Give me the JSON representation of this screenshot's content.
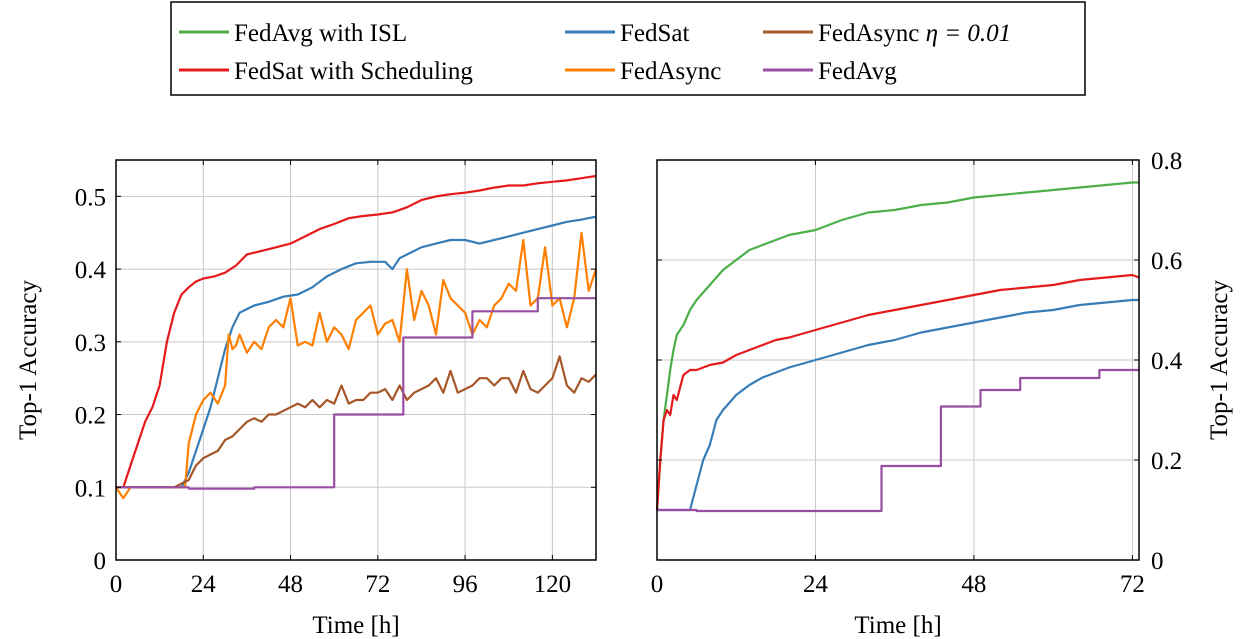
{
  "legend": {
    "entries": [
      {
        "label": "FedAvg with ISL",
        "color": "#4daf4a"
      },
      {
        "label": "FedSat",
        "color": "#377eb8"
      },
      {
        "label": "FedAsync ",
        "math": "η = 0.01",
        "color": "#a65628"
      },
      {
        "label": "FedSat with Scheduling",
        "color": "#e41a1c"
      },
      {
        "label": "FedAsync",
        "color": "#ff7f00"
      },
      {
        "label": "FedAvg",
        "color": "#984ea3"
      }
    ]
  },
  "chart_data": [
    {
      "type": "line",
      "xlabel": "Time [h]",
      "ylabel": "Top-1 Accuracy",
      "xlim": [
        0,
        132
      ],
      "ylim": [
        0,
        0.55
      ],
      "xticks": [
        0,
        24,
        48,
        72,
        96,
        120
      ],
      "yticks": [
        0,
        0.1,
        0.2,
        0.3,
        0.4,
        0.5
      ],
      "xtick_labels": [
        "0",
        "24",
        "48",
        "72",
        "96",
        "120"
      ],
      "ytick_labels": [
        "0",
        "0.1",
        "0.2",
        "0.3",
        "0.4",
        "0.5"
      ],
      "ytick_side": "left",
      "grid": true,
      "series": [
        {
          "name": "FedSat with Scheduling",
          "color": "#e41a1c",
          "step": false,
          "x": [
            0,
            2,
            4,
            6,
            8,
            10,
            12,
            14,
            16,
            18,
            20,
            22,
            24,
            27,
            30,
            33,
            36,
            40,
            44,
            48,
            52,
            56,
            60,
            64,
            68,
            72,
            76,
            80,
            84,
            88,
            92,
            96,
            100,
            104,
            108,
            112,
            116,
            120,
            124,
            128,
            132
          ],
          "y": [
            0.1,
            0.1,
            0.13,
            0.16,
            0.19,
            0.21,
            0.24,
            0.3,
            0.34,
            0.365,
            0.375,
            0.383,
            0.387,
            0.39,
            0.395,
            0.405,
            0.42,
            0.425,
            0.43,
            0.435,
            0.445,
            0.455,
            0.462,
            0.47,
            0.473,
            0.475,
            0.478,
            0.485,
            0.495,
            0.5,
            0.503,
            0.505,
            0.508,
            0.512,
            0.515,
            0.515,
            0.518,
            0.52,
            0.522,
            0.525,
            0.528
          ]
        },
        {
          "name": "FedSat",
          "color": "#377eb8",
          "step": false,
          "x": [
            0,
            4,
            8,
            12,
            16,
            18,
            20,
            22,
            24,
            26,
            28,
            30,
            32,
            34,
            36,
            38,
            42,
            46,
            50,
            54,
            58,
            62,
            66,
            70,
            74,
            76,
            78,
            80,
            84,
            88,
            92,
            96,
            100,
            104,
            108,
            112,
            116,
            120,
            124,
            128,
            132
          ],
          "y": [
            0.1,
            0.1,
            0.1,
            0.1,
            0.1,
            0.1,
            0.12,
            0.15,
            0.18,
            0.21,
            0.25,
            0.29,
            0.32,
            0.34,
            0.345,
            0.35,
            0.355,
            0.362,
            0.365,
            0.375,
            0.39,
            0.4,
            0.408,
            0.41,
            0.41,
            0.4,
            0.415,
            0.42,
            0.43,
            0.435,
            0.44,
            0.44,
            0.435,
            0.44,
            0.445,
            0.45,
            0.455,
            0.46,
            0.465,
            0.468,
            0.472
          ]
        },
        {
          "name": "FedAsync",
          "color": "#ff7f00",
          "step": false,
          "x": [
            0,
            2,
            4,
            6,
            8,
            12,
            16,
            19,
            20,
            22,
            24,
            26,
            28,
            30,
            31,
            32,
            33,
            34,
            36,
            38,
            40,
            42,
            44,
            46,
            48,
            50,
            52,
            54,
            56,
            58,
            60,
            62,
            64,
            66,
            68,
            70,
            72,
            74,
            76,
            78,
            80,
            82,
            84,
            86,
            88,
            90,
            92,
            94,
            96,
            98,
            100,
            102,
            104,
            106,
            108,
            110,
            112,
            114,
            116,
            118,
            120,
            122,
            124,
            126,
            128,
            130,
            132
          ],
          "y": [
            0.1,
            0.085,
            0.1,
            0.1,
            0.1,
            0.1,
            0.1,
            0.1,
            0.16,
            0.2,
            0.22,
            0.23,
            0.215,
            0.24,
            0.31,
            0.29,
            0.295,
            0.31,
            0.285,
            0.3,
            0.29,
            0.32,
            0.33,
            0.32,
            0.36,
            0.295,
            0.3,
            0.295,
            0.34,
            0.3,
            0.32,
            0.31,
            0.29,
            0.33,
            0.34,
            0.35,
            0.31,
            0.325,
            0.33,
            0.3,
            0.4,
            0.33,
            0.37,
            0.35,
            0.31,
            0.385,
            0.36,
            0.35,
            0.34,
            0.31,
            0.33,
            0.32,
            0.35,
            0.36,
            0.38,
            0.37,
            0.44,
            0.35,
            0.36,
            0.43,
            0.35,
            0.36,
            0.32,
            0.36,
            0.45,
            0.37,
            0.4
          ]
        },
        {
          "name": "FedAsync η = 0.01",
          "color": "#a65628",
          "step": false,
          "x": [
            0,
            4,
            8,
            12,
            16,
            20,
            22,
            24,
            26,
            28,
            30,
            32,
            34,
            36,
            38,
            40,
            42,
            44,
            46,
            48,
            50,
            52,
            54,
            56,
            58,
            60,
            62,
            64,
            66,
            68,
            70,
            72,
            74,
            76,
            78,
            80,
            82,
            84,
            86,
            88,
            90,
            92,
            94,
            96,
            98,
            100,
            102,
            104,
            106,
            108,
            110,
            112,
            114,
            116,
            118,
            120,
            122,
            124,
            126,
            128,
            130,
            132
          ],
          "y": [
            0.1,
            0.1,
            0.1,
            0.1,
            0.1,
            0.11,
            0.13,
            0.14,
            0.145,
            0.15,
            0.165,
            0.17,
            0.18,
            0.19,
            0.195,
            0.19,
            0.2,
            0.2,
            0.205,
            0.21,
            0.215,
            0.21,
            0.22,
            0.21,
            0.22,
            0.215,
            0.24,
            0.215,
            0.22,
            0.22,
            0.23,
            0.23,
            0.235,
            0.22,
            0.24,
            0.22,
            0.23,
            0.235,
            0.24,
            0.25,
            0.23,
            0.26,
            0.23,
            0.235,
            0.24,
            0.25,
            0.25,
            0.24,
            0.25,
            0.25,
            0.23,
            0.26,
            0.235,
            0.23,
            0.24,
            0.25,
            0.28,
            0.24,
            0.23,
            0.25,
            0.245,
            0.255
          ]
        },
        {
          "name": "FedAvg",
          "color": "#984ea3",
          "step": true,
          "x": [
            0,
            20,
            38,
            60,
            79,
            98,
            116,
            132
          ],
          "y": [
            0.1,
            0.098,
            0.1,
            0.2,
            0.306,
            0.342,
            0.36,
            0.36
          ]
        }
      ]
    },
    {
      "type": "line",
      "xlabel": "Time [h]",
      "ylabel": "Top-1 Accuracy",
      "xlim": [
        0,
        73
      ],
      "ylim": [
        0,
        0.8
      ],
      "xticks": [
        0,
        24,
        48,
        72
      ],
      "yticks": [
        0,
        0.2,
        0.4,
        0.6,
        0.8
      ],
      "xtick_labels": [
        "0",
        "24",
        "48",
        "72"
      ],
      "ytick_labels": [
        "0",
        "0.2",
        "0.4",
        "0.6",
        "0.8"
      ],
      "ytick_side": "right",
      "grid": true,
      "series": [
        {
          "name": "FedAvg with ISL",
          "color": "#4daf4a",
          "step": false,
          "x": [
            0,
            0.5,
            1,
            1.5,
            2,
            2.5,
            3,
            4,
            5,
            6,
            8,
            10,
            12,
            14,
            16,
            18,
            20,
            24,
            28,
            32,
            36,
            40,
            44,
            48,
            52,
            56,
            60,
            64,
            68,
            72,
            73
          ],
          "y": [
            0.1,
            0.2,
            0.28,
            0.33,
            0.38,
            0.42,
            0.45,
            0.47,
            0.5,
            0.52,
            0.55,
            0.58,
            0.6,
            0.62,
            0.63,
            0.64,
            0.65,
            0.66,
            0.68,
            0.695,
            0.7,
            0.71,
            0.715,
            0.725,
            0.73,
            0.735,
            0.74,
            0.745,
            0.75,
            0.755,
            0.755
          ]
        },
        {
          "name": "FedSat with Scheduling",
          "color": "#e41a1c",
          "step": false,
          "x": [
            0,
            0.5,
            1,
            1.5,
            2,
            2.5,
            3,
            4,
            5,
            6,
            8,
            10,
            12,
            14,
            16,
            18,
            20,
            24,
            28,
            32,
            36,
            40,
            44,
            48,
            52,
            56,
            60,
            64,
            68,
            72,
            73
          ],
          "y": [
            0.1,
            0.2,
            0.28,
            0.3,
            0.29,
            0.33,
            0.32,
            0.37,
            0.38,
            0.38,
            0.39,
            0.395,
            0.41,
            0.42,
            0.43,
            0.44,
            0.445,
            0.46,
            0.475,
            0.49,
            0.5,
            0.51,
            0.52,
            0.53,
            0.54,
            0.545,
            0.55,
            0.56,
            0.565,
            0.57,
            0.565
          ]
        },
        {
          "name": "FedSat",
          "color": "#377eb8",
          "step": false,
          "x": [
            0,
            2,
            4,
            5,
            6,
            7,
            8,
            9,
            10,
            12,
            14,
            16,
            18,
            20,
            24,
            28,
            32,
            36,
            40,
            44,
            48,
            52,
            56,
            60,
            64,
            68,
            72,
            73
          ],
          "y": [
            0.1,
            0.1,
            0.1,
            0.1,
            0.15,
            0.2,
            0.23,
            0.28,
            0.3,
            0.33,
            0.35,
            0.365,
            0.375,
            0.385,
            0.4,
            0.415,
            0.43,
            0.44,
            0.455,
            0.465,
            0.475,
            0.485,
            0.495,
            0.5,
            0.51,
            0.515,
            0.52,
            0.52
          ]
        },
        {
          "name": "FedAvg",
          "color": "#984ea3",
          "step": true,
          "x": [
            0,
            6,
            25,
            34,
            43,
            49,
            55,
            61,
            67,
            73
          ],
          "y": [
            0.1,
            0.098,
            0.098,
            0.188,
            0.307,
            0.34,
            0.364,
            0.364,
            0.38,
            0.38
          ]
        }
      ]
    }
  ]
}
